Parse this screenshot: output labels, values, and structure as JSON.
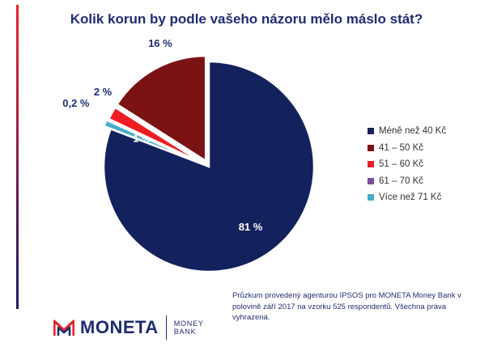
{
  "chart_data": {
    "type": "pie",
    "title": "Kolik korun by podle vašeho názoru mělo máslo stát?",
    "categories": [
      "Méně než 40 Kč",
      "41 – 50 Kč",
      "51 – 60 Kč",
      "61 – 70 Kč",
      "Více než 71 Kč"
    ],
    "values": [
      81,
      16,
      2,
      0.2,
      1
    ],
    "data_labels": [
      "81 %",
      "16 %",
      "2 %",
      "0,2 %",
      "1 %"
    ],
    "colors": [
      "#13215c",
      "#7b1214",
      "#ee1c23",
      "#7a4f9a",
      "#4aacc6"
    ],
    "legend_position": "right"
  },
  "source_note": "Průzkum provedený agenturou IPSOS pro MONETA Money Bank v polovině září 2017 na vzorku 525 respondentů. Všechna práva vyhrazena.",
  "brand": {
    "name": "MONETA",
    "sub_line1": "MONEY",
    "sub_line2": "BANK",
    "icon": "moneta-logo-icon"
  }
}
